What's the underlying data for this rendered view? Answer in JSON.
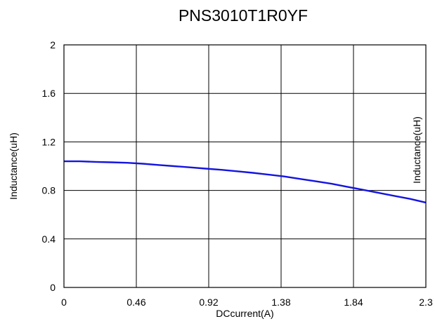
{
  "chart_data": {
    "type": "line",
    "title": "PNS3010T1R0YF",
    "xlabel": "DCcurrent(A)",
    "ylabel": "Inductance(uH)",
    "xlim": [
      0,
      2.3
    ],
    "ylim": [
      0,
      2
    ],
    "xticks": [
      "0",
      "0.46",
      "0.92",
      "1.38",
      "1.84",
      "2.3"
    ],
    "yticks": [
      "0",
      "0.4",
      "0.8",
      "1.2",
      "1.6",
      "2"
    ],
    "grid": true,
    "series": [
      {
        "name": "Inductance(uH)",
        "color": "#1414e0",
        "x": [
          0,
          0.1,
          0.2,
          0.3,
          0.4,
          0.5,
          0.6,
          0.7,
          0.8,
          0.9,
          1.0,
          1.1,
          1.2,
          1.3,
          1.4,
          1.5,
          1.6,
          1.7,
          1.8,
          1.9,
          2.0,
          2.1,
          2.2,
          2.3
        ],
        "y": [
          1.04,
          1.04,
          1.035,
          1.032,
          1.028,
          1.02,
          1.01,
          1.0,
          0.99,
          0.98,
          0.97,
          0.958,
          0.945,
          0.93,
          0.915,
          0.895,
          0.875,
          0.855,
          0.83,
          0.805,
          0.78,
          0.755,
          0.73,
          0.7
        ]
      }
    ]
  }
}
